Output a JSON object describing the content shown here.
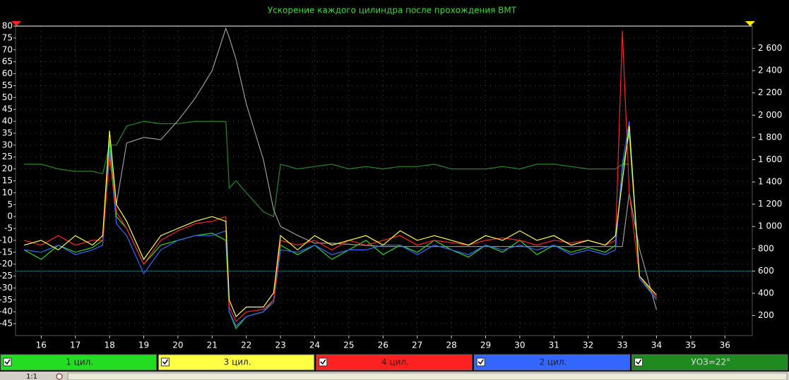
{
  "chart_data": {
    "type": "line",
    "title": "Ускорение каждого цилиндра после прохождения ВМТ",
    "x": [
      15.5,
      16,
      16.5,
      17,
      17.5,
      17.8,
      18,
      18.2,
      18.5,
      19,
      19.5,
      20,
      20.5,
      21,
      21.4,
      21.5,
      21.7,
      22,
      22.5,
      22.8,
      23,
      23.5,
      24,
      24.5,
      25,
      25.5,
      26,
      26.5,
      27,
      27.5,
      28,
      28.5,
      29,
      29.5,
      30,
      30.5,
      31,
      31.5,
      32,
      32.5,
      32.8,
      33,
      33.2,
      33.5,
      34
    ],
    "series": [
      {
        "name": "1 цил.",
        "color": "#22dd22",
        "values": [
          -14,
          -18,
          -12,
          -15,
          -13,
          -10,
          32,
          0,
          -5,
          -20,
          -12,
          -10,
          -8,
          -7,
          -10,
          -40,
          -47,
          -42,
          -40,
          -35,
          -12,
          -16,
          -12,
          -18,
          -14,
          -10,
          -16,
          -12,
          -15,
          -10,
          -14,
          -17,
          -12,
          -15,
          -10,
          -16,
          -12,
          -15,
          -13,
          -15,
          -12,
          20,
          35,
          -25,
          -35
        ]
      },
      {
        "name": "3 цил.",
        "color": "#ffff44",
        "values": [
          -12,
          -10,
          -14,
          -8,
          -12,
          -8,
          36,
          5,
          -2,
          -18,
          -8,
          -5,
          -2,
          0,
          -2,
          -35,
          -42,
          -38,
          -38,
          -32,
          -8,
          -14,
          -8,
          -12,
          -10,
          -8,
          -12,
          -6,
          -10,
          -8,
          -10,
          -12,
          -8,
          -10,
          -6,
          -10,
          -8,
          -12,
          -10,
          -12,
          -8,
          15,
          38,
          -25,
          -33
        ]
      },
      {
        "name": "4 цил.",
        "color": "#ff2020",
        "values": [
          -10,
          -12,
          -8,
          -12,
          -10,
          -10,
          25,
          2,
          -5,
          -20,
          -10,
          -6,
          -3,
          -2,
          0,
          -38,
          -44,
          -40,
          -39,
          -35,
          -10,
          -12,
          -10,
          -14,
          -10,
          -12,
          -10,
          -8,
          -12,
          -10,
          -11,
          -12,
          -10,
          -9,
          -10,
          -12,
          -10,
          -11,
          -10,
          -12,
          -10,
          78,
          10,
          -25,
          -34
        ]
      },
      {
        "name": "2 цил.",
        "color": "#3366ff",
        "values": [
          -14,
          -15,
          -12,
          -16,
          -14,
          -12,
          28,
          -3,
          -8,
          -24,
          -14,
          -10,
          -8,
          -8,
          -6,
          -40,
          -46,
          -42,
          -40,
          -36,
          -14,
          -15,
          -12,
          -16,
          -14,
          -14,
          -12,
          -12,
          -16,
          -12,
          -14,
          -16,
          -12,
          -14,
          -12,
          -14,
          -12,
          -16,
          -14,
          -16,
          -14,
          22,
          40,
          -26,
          -35
        ]
      },
      {
        "name": "УОЗ=22°",
        "color": "#1f8a1f",
        "values": [
          22,
          22,
          20,
          19,
          19,
          18,
          30,
          30,
          38,
          40,
          39,
          39,
          40,
          40,
          40,
          12,
          15,
          10,
          2,
          0,
          22,
          20,
          21,
          22,
          20,
          21,
          20,
          21,
          21,
          22,
          20,
          20,
          20,
          21,
          20,
          22,
          22,
          21,
          20,
          20,
          20,
          22,
          22,
          null,
          null
        ]
      },
      {
        "color": "#9a9a9a",
        "axis": "y2",
        "values": [
          null,
          null,
          null,
          null,
          null,
          null,
          null,
          1200,
          1750,
          1800,
          1780,
          1950,
          2150,
          2400,
          2780,
          2700,
          2500,
          2100,
          1600,
          1150,
          1000,
          920,
          850,
          850,
          840,
          830,
          820,
          820,
          820,
          820,
          820,
          820,
          820,
          820,
          820,
          820,
          820,
          820,
          820,
          820,
          820,
          820,
          1300,
          800,
          250
        ]
      }
    ],
    "xlim": [
      15.25,
      36.8
    ],
    "xticks": [
      16,
      17,
      18,
      19,
      20,
      21,
      22,
      23,
      24,
      25,
      26,
      27,
      28,
      29,
      30,
      31,
      32,
      33,
      34,
      35,
      36
    ],
    "ylim": [
      -50,
      80
    ],
    "yticks": [
      -45,
      -40,
      -35,
      -30,
      -25,
      -20,
      -15,
      -10,
      -5,
      0,
      5,
      10,
      15,
      20,
      25,
      30,
      35,
      40,
      45,
      50,
      55,
      60,
      65,
      70,
      75,
      80
    ],
    "y2lim": [
      20,
      2800
    ],
    "y2ticks": [
      200,
      400,
      600,
      800,
      {
        "value": 1000,
        "label": "1 000"
      },
      {
        "value": 1200,
        "label": "1 200"
      },
      {
        "value": 1400,
        "label": "1 400"
      },
      {
        "value": 1600,
        "label": "1 600"
      },
      {
        "value": 1800,
        "label": "1 800"
      },
      {
        "value": 2000,
        "label": "2 000"
      },
      {
        "value": 2200,
        "label": "2 200"
      },
      {
        "value": 2400,
        "label": "2 400"
      },
      {
        "value": 2600,
        "label": "2 600"
      }
    ],
    "hline_y2": 600,
    "grid": true,
    "zoom_label": "1:1"
  }
}
